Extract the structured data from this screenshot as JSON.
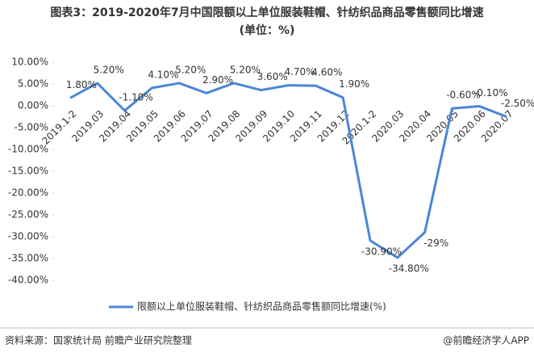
{
  "chart_data": {
    "type": "line",
    "title": "图表3：2019-2020年7月中国限额以上单位服装鞋帽、针纺织品商品零售额同比增速",
    "subtitle": "(单位：%)",
    "categories": [
      "2019.1-2",
      "2019.03",
      "2019.04",
      "2019.05",
      "2019.06",
      "2019.07",
      "2019.08",
      "2019.09",
      "2019.10",
      "2019.11",
      "2019.12",
      "2020.1-2",
      "2020.03",
      "2020.04",
      "2020.05",
      "2020.06",
      "2020.07"
    ],
    "series": [
      {
        "name": "限额以上单位服装鞋帽、针纺织品商品零售额同比增速(%)",
        "color": "#4a86d8",
        "values": [
          1.8,
          5.2,
          -1.1,
          4.1,
          5.2,
          2.9,
          5.2,
          3.6,
          4.7,
          4.6,
          1.9,
          -30.9,
          -34.8,
          -29,
          -0.6,
          -0.1,
          -2.5
        ],
        "value_labels": [
          "1.80%",
          "5.20%",
          "-1.10%",
          "4.10%",
          "5.20%",
          "2.90%",
          "5.20%",
          "3.60%",
          "4.70%",
          "4.60%",
          "1.90%",
          "-30.90%",
          "-34.80%",
          "-29%",
          "-0.60%",
          "-0.10%",
          "-2.50%"
        ]
      }
    ],
    "ylim": [
      -40,
      10
    ],
    "yticks": [
      {
        "value": 10,
        "label": "10.00%"
      },
      {
        "value": 5,
        "label": "5.00%"
      },
      {
        "value": 0,
        "label": "0.00%"
      },
      {
        "value": -5,
        "label": "-5.00%"
      },
      {
        "value": -10,
        "label": "-10.00%"
      },
      {
        "value": -15,
        "label": "-15.00%"
      },
      {
        "value": -20,
        "label": "-20.00%"
      },
      {
        "value": -25,
        "label": "-25.00%"
      },
      {
        "value": -30,
        "label": "-30.00%"
      },
      {
        "value": -35,
        "label": "-35.00%"
      },
      {
        "value": -40,
        "label": "-40.00%"
      }
    ],
    "source": "资料来源：国家统计局 前瞻产业研究院整理",
    "credit": "@前瞻经济学人APP"
  }
}
